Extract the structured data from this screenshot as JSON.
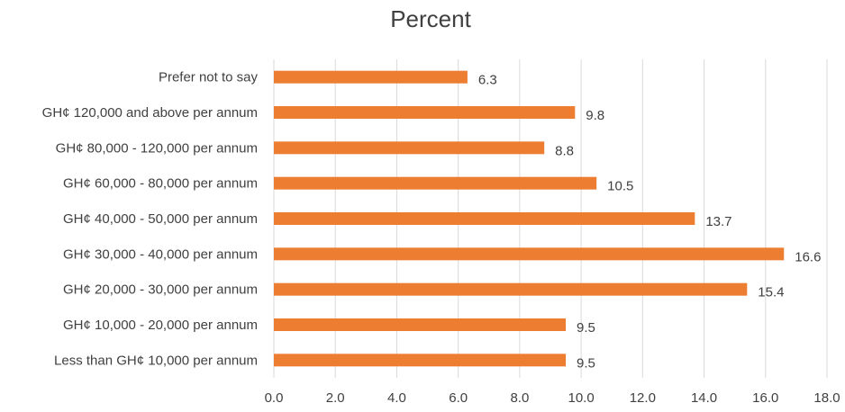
{
  "chart_data": {
    "type": "bar",
    "orientation": "horizontal",
    "title": "Percent",
    "categories": [
      "Prefer not to say",
      "GH¢ 120,000 and above per annum",
      "GH¢ 80,000 - 120,000 per annum",
      "GH¢ 60,000 - 80,000 per annum",
      "GH¢ 40,000 - 50,000 per annum",
      "GH¢ 30,000 - 40,000 per annum",
      "GH¢ 20,000 - 30,000 per annum",
      "GH¢ 10,000 - 20,000 per annum",
      "Less than GH¢ 10,000 per annum"
    ],
    "values": [
      6.3,
      9.8,
      8.8,
      10.5,
      13.7,
      16.6,
      15.4,
      9.5,
      9.5
    ],
    "value_labels": [
      "6.3",
      "9.8",
      "8.8",
      "10.5",
      "13.7",
      "16.6",
      "15.4",
      "9.5",
      "9.5"
    ],
    "xlim": [
      0,
      18
    ],
    "x_ticks": [
      "0.0",
      "2.0",
      "4.0",
      "6.0",
      "8.0",
      "10.0",
      "12.0",
      "14.0",
      "16.0",
      "18.0"
    ],
    "grid": "vertical",
    "legend": "none",
    "bar_color": "#ED7D31"
  }
}
